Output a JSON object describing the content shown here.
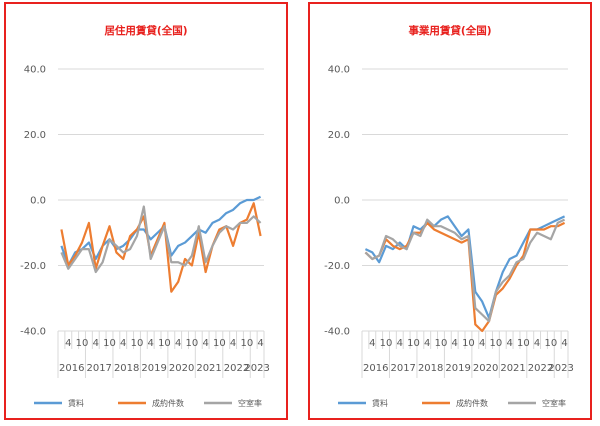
{
  "chart_data": [
    {
      "type": "line",
      "title": "居住用賃貸(全国)",
      "ylim": [
        -40,
        40
      ],
      "yticks": [
        "40.0",
        "20.0",
        "0.0",
        "-20.0",
        "-40.0"
      ],
      "grid": true,
      "legend": "bottom",
      "x": [
        "2016Q1",
        "2016Q2",
        "2016Q3",
        "2016Q4",
        "2017Q1",
        "2017Q2",
        "2017Q3",
        "2017Q4",
        "2018Q1",
        "2018Q2",
        "2018Q3",
        "2018Q4",
        "2019Q1",
        "2019Q2",
        "2019Q3",
        "2019Q4",
        "2020Q1",
        "2020Q2",
        "2020Q3",
        "2020Q4",
        "2021Q1",
        "2021Q2",
        "2021Q3",
        "2021Q4",
        "2022Q1",
        "2022Q2",
        "2022Q3",
        "2022Q4",
        "2023Q1",
        "2023Q2"
      ],
      "category_labels": [
        {
          "label": "4",
          "at": 1
        },
        {
          "label": "10",
          "at": 3
        },
        {
          "label": "4",
          "at": 5
        },
        {
          "label": "10",
          "at": 7
        },
        {
          "label": "4",
          "at": 9
        },
        {
          "label": "10",
          "at": 11
        },
        {
          "label": "4",
          "at": 13
        },
        {
          "label": "10",
          "at": 15
        },
        {
          "label": "4",
          "at": 17
        },
        {
          "label": "10",
          "at": 19
        },
        {
          "label": "4",
          "at": 21
        },
        {
          "label": "10",
          "at": 23
        },
        {
          "label": "4",
          "at": 25
        },
        {
          "label": "10",
          "at": 27
        },
        {
          "label": "4",
          "at": 29
        }
      ],
      "year_labels": [
        {
          "label": "2016",
          "from": 0,
          "to": 3
        },
        {
          "label": "2017",
          "from": 4,
          "to": 7
        },
        {
          "label": "2018",
          "from": 8,
          "to": 11
        },
        {
          "label": "2019",
          "from": 12,
          "to": 15
        },
        {
          "label": "2020",
          "from": 16,
          "to": 19
        },
        {
          "label": "2021",
          "from": 20,
          "to": 23
        },
        {
          "label": "2022",
          "from": 24,
          "to": 27
        },
        {
          "label": "2023",
          "from": 28,
          "to": 29
        }
      ],
      "series": [
        {
          "name": "賃料",
          "color": "#5b9bd5",
          "values": [
            -14,
            -20,
            -16,
            -15,
            -13,
            -18,
            -14,
            -12,
            -15,
            -14,
            -12,
            -9,
            -9,
            -12,
            -10,
            -8,
            -17,
            -14,
            -13,
            -11,
            -9,
            -10,
            -7,
            -6,
            -4,
            -3,
            -1,
            0,
            0,
            1
          ]
        },
        {
          "name": "成約件数",
          "color": "#ed7d31",
          "values": [
            -9,
            -20,
            -17,
            -13,
            -7,
            -21,
            -14,
            -8,
            -16,
            -18,
            -11,
            -9,
            -5,
            -17,
            -12,
            -7,
            -28,
            -25,
            -18,
            -20,
            -10,
            -22,
            -14,
            -9,
            -8,
            -14,
            -7,
            -6,
            -1,
            -11
          ]
        },
        {
          "name": "空室率",
          "color": "#a5a5a5",
          "values": [
            -16,
            -21,
            -18,
            -15,
            -15,
            -22,
            -19,
            -12,
            -14,
            -16,
            -15,
            -11,
            -2,
            -18,
            -13,
            -8,
            -19,
            -19,
            -20,
            -17,
            -8,
            -19,
            -14,
            -10,
            -8,
            -9,
            -7,
            -7,
            -5,
            -7
          ]
        }
      ]
    },
    {
      "type": "line",
      "title": "事業用賃貸(全国)",
      "ylim": [
        -40,
        40
      ],
      "yticks": [
        "40.0",
        "20.0",
        "0.0",
        "-20.0",
        "-40.0"
      ],
      "grid": true,
      "legend": "bottom",
      "x": [
        "2016Q1",
        "2016Q2",
        "2016Q3",
        "2016Q4",
        "2017Q1",
        "2017Q2",
        "2017Q3",
        "2017Q4",
        "2018Q1",
        "2018Q2",
        "2018Q3",
        "2018Q4",
        "2019Q1",
        "2019Q2",
        "2019Q3",
        "2019Q4",
        "2020Q1",
        "2020Q2",
        "2020Q3",
        "2020Q4",
        "2021Q1",
        "2021Q2",
        "2021Q3",
        "2021Q4",
        "2022Q1",
        "2022Q2",
        "2022Q3",
        "2022Q4",
        "2023Q1",
        "2023Q2"
      ],
      "category_labels": [
        {
          "label": "4",
          "at": 1
        },
        {
          "label": "10",
          "at": 3
        },
        {
          "label": "4",
          "at": 5
        },
        {
          "label": "10",
          "at": 7
        },
        {
          "label": "4",
          "at": 9
        },
        {
          "label": "10",
          "at": 11
        },
        {
          "label": "4",
          "at": 13
        },
        {
          "label": "10",
          "at": 15
        },
        {
          "label": "4",
          "at": 17
        },
        {
          "label": "10",
          "at": 19
        },
        {
          "label": "4",
          "at": 21
        },
        {
          "label": "10",
          "at": 23
        },
        {
          "label": "4",
          "at": 25
        },
        {
          "label": "10",
          "at": 27
        },
        {
          "label": "4",
          "at": 29
        }
      ],
      "year_labels": [
        {
          "label": "2016",
          "from": 0,
          "to": 3
        },
        {
          "label": "2017",
          "from": 4,
          "to": 7
        },
        {
          "label": "2018",
          "from": 8,
          "to": 11
        },
        {
          "label": "2019",
          "from": 12,
          "to": 15
        },
        {
          "label": "2020",
          "from": 16,
          "to": 19
        },
        {
          "label": "2021",
          "from": 20,
          "to": 23
        },
        {
          "label": "2022",
          "from": 24,
          "to": 27
        },
        {
          "label": "2023",
          "from": 28,
          "to": 29
        }
      ],
      "series": [
        {
          "name": "賃料",
          "color": "#5b9bd5",
          "values": [
            -15,
            -16,
            -19,
            -14,
            -15,
            -13,
            -15,
            -8,
            -9,
            -7,
            -8,
            -6,
            -5,
            -8,
            -11,
            -9,
            -28,
            -31,
            -36,
            -28,
            -22,
            -18,
            -17,
            -13,
            -9,
            -9,
            -8,
            -7,
            -6,
            -5
          ]
        },
        {
          "name": "成約件数",
          "color": "#ed7d31",
          "values": [
            -16,
            -18,
            -17,
            -12,
            -14,
            -15,
            -14,
            -10,
            -10,
            -7,
            -9,
            -10,
            -11,
            -12,
            -13,
            -12,
            -38,
            -40,
            -37,
            -29,
            -27,
            -24,
            -20,
            -17,
            -9,
            -9,
            -9,
            -8,
            -8,
            -7
          ]
        },
        {
          "name": "空室率",
          "color": "#a5a5a5",
          "values": [
            -16,
            -18,
            -17,
            -11,
            -12,
            -14,
            -15,
            -10,
            -11,
            -6,
            -8,
            -8,
            -9,
            -10,
            -12,
            -11,
            -33,
            -35,
            -37,
            -28,
            -25,
            -23,
            -19,
            -18,
            -13,
            -10,
            -11,
            -12,
            -7,
            -6
          ]
        }
      ]
    }
  ]
}
